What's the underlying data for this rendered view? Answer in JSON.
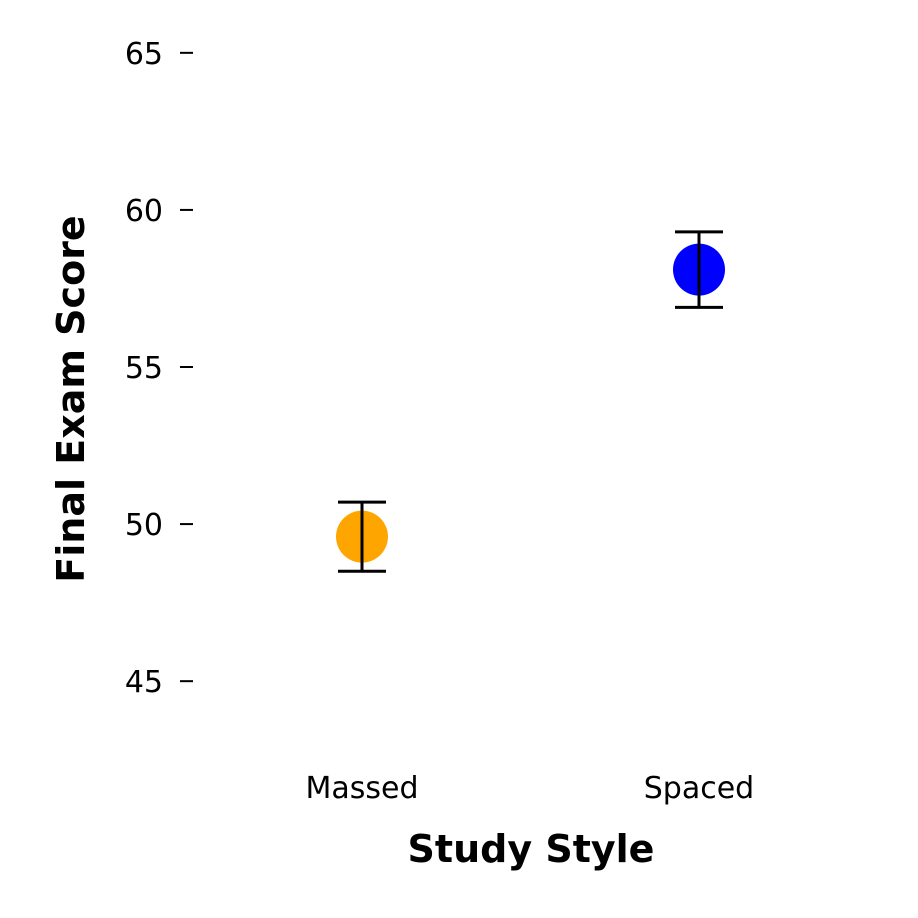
{
  "chart_data": {
    "type": "scatter",
    "title": "",
    "xlabel": "Study Style",
    "ylabel": "Final Exam Score",
    "categories": [
      "Massed",
      "Spaced"
    ],
    "points": [
      {
        "category": "Massed",
        "mean": 49.6,
        "ci_low": 48.5,
        "ci_high": 50.7,
        "color": "#FFA500"
      },
      {
        "category": "Spaced",
        "mean": 58.1,
        "ci_low": 56.9,
        "ci_high": 59.3,
        "color": "#0000FF"
      }
    ],
    "ylim": [
      43,
      66.3
    ],
    "yticks": [
      45,
      50,
      55,
      60,
      65
    ],
    "grid": false,
    "legend": "none",
    "error_bar_color": "#000000"
  }
}
